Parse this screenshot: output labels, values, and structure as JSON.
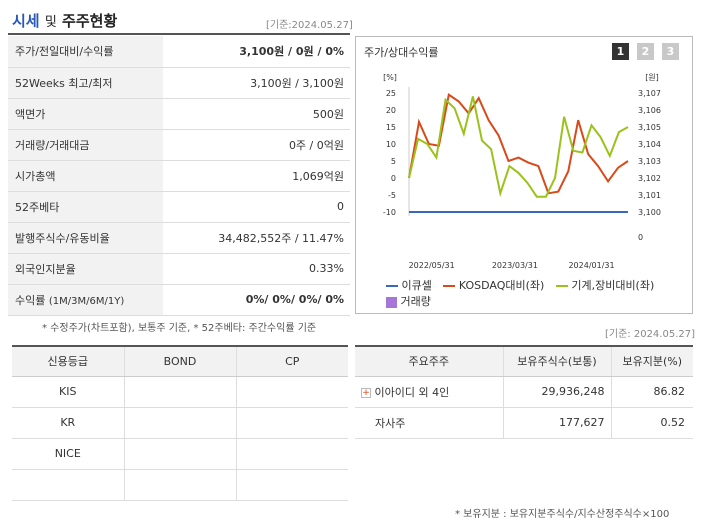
{
  "header": {
    "title_part1": "시세",
    "title_part2": "및",
    "title_part3": "주주현황",
    "date": "[기준:2024.05.27]"
  },
  "info_rows": [
    {
      "label": "주가/전일대비/수익률",
      "value": "3,100원 / 0원 / 0%"
    },
    {
      "label": "52Weeks 최고/최저",
      "value": "3,100원 / 3,100원"
    },
    {
      "label": "액면가",
      "value": "500원"
    },
    {
      "label": "거래량/거래대금",
      "value": "0주 / 0억원"
    },
    {
      "label": "시가총액",
      "value": "1,069억원"
    },
    {
      "label": "52주베타",
      "value": "0"
    },
    {
      "label": "발행주식수/유동비율",
      "value": "34,482,552주 / 11.47%"
    },
    {
      "label": "외국인지분율",
      "value": "0.33%"
    },
    {
      "label": "수익률",
      "label_sub": "(1M/3M/6M/1Y)",
      "value": "0%/ 0%/ 0%/ 0%"
    }
  ],
  "info_note": "* 수정주가(차트포함), 보통주 기준, * 52주베타: 주간수익률 기준",
  "chart": {
    "title": "주가/상대수익률",
    "tabs": [
      "1",
      "2",
      "3"
    ],
    "left_unit": "[%]",
    "right_unit": "[원]",
    "x_ticks": [
      "2022/05/31",
      "2023/03/31",
      "2024/01/31"
    ],
    "legend": [
      "이큐셀",
      "KOSDAQ대비(좌)",
      "기계,장비대비(좌)",
      "거래량"
    ],
    "colors": {
      "stock": "#3b67c4",
      "kosdaq": "#d9491a",
      "machine": "#9ac21b",
      "volume": "#a774d8"
    }
  },
  "chart_data": {
    "type": "line",
    "x_ticks": [
      "2022/05/31",
      "2023/03/31",
      "2024/01/31"
    ],
    "y_left_ticks": [
      25,
      20,
      15,
      10,
      5,
      0,
      -5,
      -10
    ],
    "y_right_ticks": [
      "3,107",
      "3,106",
      "3,105",
      "3,104",
      "3,103",
      "3,102",
      "3,101",
      "3,100",
      "0"
    ],
    "ylim_left": [
      -10,
      25
    ],
    "series": [
      {
        "name": "이큐셀",
        "axis": "right",
        "values": [
          3100,
          3100,
          3100,
          3100,
          3100,
          3100,
          3100,
          3100,
          3100,
          3100,
          3100,
          3100,
          3100,
          3100,
          3100,
          3100,
          3100,
          3100,
          3100,
          3100,
          3100,
          3100,
          3100,
          3100,
          3100,
          3100,
          3100,
          3100
        ]
      },
      {
        "name": "KOSDAQ대비(좌)",
        "axis": "left",
        "values": [
          0,
          16.5,
          10,
          9.5,
          24.5,
          22.5,
          19,
          23.5,
          17,
          12.5,
          5,
          6,
          4.5,
          3.5,
          -4.5,
          -4,
          2,
          17,
          7,
          3.5,
          -1,
          3,
          5
        ]
      },
      {
        "name": "기계,장비대비(좌)",
        "axis": "left",
        "values": [
          0,
          11.5,
          10,
          6,
          23,
          20.5,
          13,
          24,
          11,
          8.5,
          -4.5,
          3.5,
          1.5,
          -1.5,
          -5.5,
          -5.5,
          0,
          18,
          8,
          7.5,
          15.5,
          12,
          6.5,
          13.5,
          15
        ]
      }
    ]
  },
  "credit": {
    "headers": [
      "신용등급",
      "BOND",
      "CP"
    ],
    "rows": [
      [
        "KIS",
        "",
        ""
      ],
      [
        "KR",
        "",
        ""
      ],
      [
        "NICE",
        "",
        ""
      ],
      [
        "",
        "",
        ""
      ]
    ]
  },
  "holders": {
    "date": "[기준: 2024.05.27]",
    "headers": [
      "주요주주",
      "보유주식수(보통)",
      "보유지분(%)"
    ],
    "rows": [
      {
        "name": "이아이디 외 4인",
        "shares": "29,936,248",
        "pct": "86.82"
      },
      {
        "name": "자사주",
        "shares": "177,627",
        "pct": "0.52"
      }
    ],
    "note": "* 보유지분 : 보유지분주식수/지수산정주식수×100"
  }
}
